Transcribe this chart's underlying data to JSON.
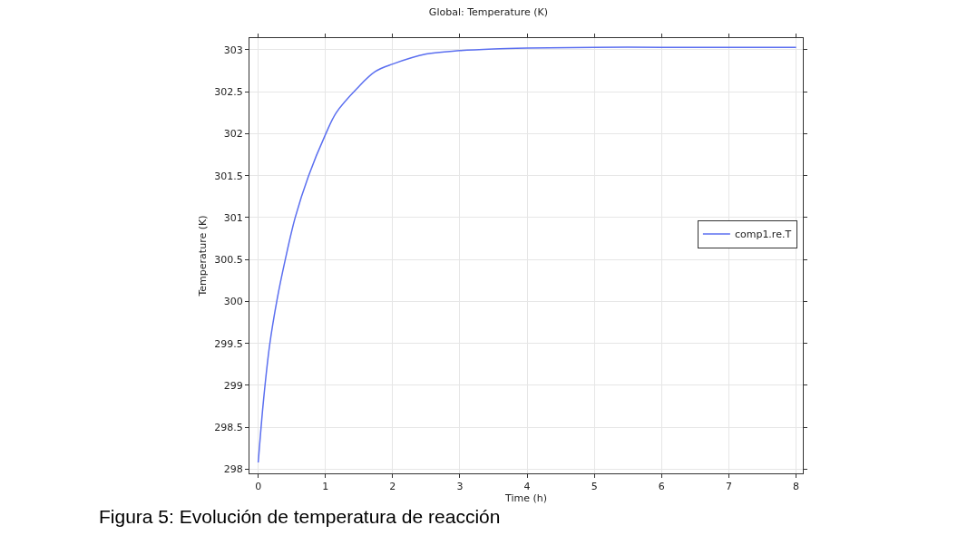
{
  "chart_data": {
    "type": "line",
    "title": "Global: Temperature (K)",
    "xlabel": "Time (h)",
    "ylabel": "Temperature (K)",
    "annotations": [
      "Figura 5: Evolución de temperatura de reacción"
    ],
    "series": [
      {
        "name": "comp1.re.T",
        "color": "#5b6ff0",
        "x": [
          0,
          0.08,
          0.17,
          0.28,
          0.4,
          0.55,
          0.75,
          1,
          1.16,
          1.47,
          1.74,
          2,
          2.5,
          3,
          3.5,
          4,
          5,
          6,
          7,
          8
        ],
        "values": [
          298.08,
          298.83,
          299.48,
          300.02,
          300.49,
          301.0,
          301.5,
          301.99,
          302.25,
          302.54,
          302.74,
          302.83,
          302.95,
          302.99,
          303.01,
          303.02,
          303.03,
          303.03,
          303.03,
          303.03
        ]
      }
    ],
    "xlim": [
      -0.13,
      8.1
    ],
    "xticks": [
      0,
      1,
      2,
      3,
      4,
      5,
      6,
      7,
      8
    ],
    "ylim": [
      297.95,
      303.14
    ],
    "yticks": [
      298,
      298.5,
      299,
      299.5,
      300,
      300.5,
      301,
      301.5,
      302,
      302.5,
      303
    ],
    "grid": true,
    "legend": "right",
    "marker": "none",
    "line_style": "solid"
  }
}
